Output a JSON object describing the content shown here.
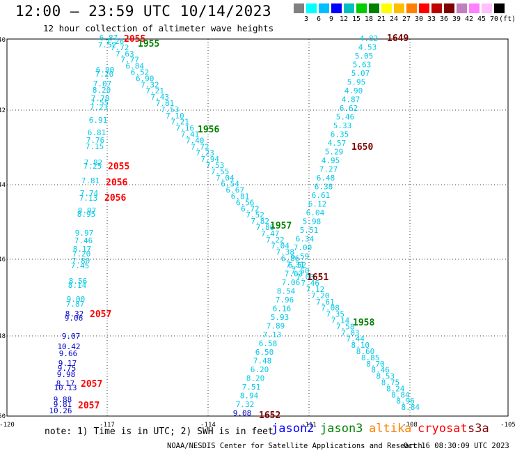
{
  "title": "12:00 – 23:59 UTC 10/14/2023",
  "subtitle": "12 hour collection of altimeter wave heights",
  "legend": {
    "unit": "(ft)",
    "colors": [
      "#808080",
      "#00ffff",
      "#00bfff",
      "#0000ff",
      "#00bfbf",
      "#00cc00",
      "#008000",
      "#ffff00",
      "#ffbf00",
      "#ff8000",
      "#ff0000",
      "#bf0000",
      "#800000",
      "#c080c0",
      "#ff80ff",
      "#ffc0ff",
      "#000000"
    ],
    "labels": [
      "3",
      "6",
      "9",
      "12",
      "15",
      "18",
      "21",
      "24",
      "27",
      "30",
      "33",
      "36",
      "39",
      "42",
      "45",
      "70"
    ]
  },
  "axes": {
    "lon_labels": [
      "-120",
      "-117",
      "-114",
      "-111",
      "-108",
      "-105"
    ],
    "lat_labels": [
      "40",
      "42",
      "44",
      "46",
      "48",
      "50"
    ]
  },
  "colors": {
    "cyan": "#00c8e6",
    "blue": "#0000cc",
    "green": "#008000",
    "red": "#ff0000",
    "darkred": "#800000",
    "grid": "#000000"
  },
  "tracks": [
    {
      "time": "2055",
      "color": "red"
    },
    {
      "time": "1955",
      "color": "green"
    },
    {
      "time": "1649",
      "color": "darkred"
    },
    {
      "time": "1650",
      "color": "darkred"
    },
    {
      "time": "1956",
      "color": "green"
    },
    {
      "time": "2055",
      "color": "red"
    },
    {
      "time": "2056",
      "color": "red"
    },
    {
      "time": "2056",
      "color": "red"
    },
    {
      "time": "1957",
      "color": "green"
    },
    {
      "time": "1651",
      "color": "darkred"
    },
    {
      "time": "2057",
      "color": "red"
    },
    {
      "time": "1958",
      "color": "green"
    },
    {
      "time": "2057",
      "color": "red"
    },
    {
      "time": "2057",
      "color": "red"
    },
    {
      "time": "1652",
      "color": "darkred"
    }
  ],
  "wave_heights": {
    "track_a": [
      "6.87",
      "7.52",
      "6.90",
      "7.20",
      "7.07",
      "8.20",
      "7.78",
      "7.55",
      "7.23",
      "6.91",
      "6.81",
      "7.76",
      "7.15",
      "7.82",
      "7.25",
      "7.81",
      "7.74",
      "7.13",
      "8.97",
      "8.95",
      "9.97",
      "7.46",
      "8.17",
      "7.20",
      "7.80",
      "7.45",
      "8.56",
      "8.14",
      "9.00",
      "7.87",
      "8.32",
      "9.06",
      "9.07",
      "10.42",
      "9.66",
      "9.17",
      "9.75",
      "9.98",
      "8.17",
      "10.13",
      "9.88",
      "9.81",
      "10.26"
    ],
    "track_b": [
      "4.82",
      "4.53",
      "5.05",
      "5.63",
      "5.07",
      "5.95",
      "4.90",
      "4.87",
      "6.62",
      "5.46",
      "5.33",
      "6.35",
      "4.57",
      "5.29",
      "4.95",
      "7.27",
      "6.48",
      "6.38",
      "6.61",
      "6.12",
      "6.04",
      "5.98",
      "5.51",
      "6.34",
      "7.00",
      "6.59",
      "6.52",
      "7.63",
      "7.06",
      "8.54",
      "7.96",
      "6.16",
      "5.93",
      "7.89",
      "7.13",
      "6.58",
      "6.50",
      "7.48",
      "6.20",
      "8.20",
      "7.51",
      "8.94",
      "7.32",
      "9.08"
    ],
    "track_c": [
      "7.26",
      "7.72",
      "7.63",
      "7.77",
      "6.84",
      "6.52",
      "6.90",
      "7.32",
      "7.21",
      "7.43",
      "7.81",
      "7.53",
      "7.10",
      "7.21",
      "7.16",
      "7.41",
      "7.40",
      "7.72",
      "7.23",
      "7.94",
      "7.53",
      "7.55",
      "7.04",
      "6.54",
      "6.67",
      "6.81",
      "6.56",
      "6.72",
      "7.52",
      "7.82",
      "7.80",
      "7.47",
      "7.22",
      "7.04",
      "7.38",
      "6.86",
      "7.31",
      "7.50",
      "7.03",
      "7.46",
      "7.12",
      "7.20",
      "7.61",
      "7.08",
      "7.35",
      "7.14",
      "7.58",
      "7.03",
      "7.44",
      "8.10",
      "8.60",
      "8.85",
      "8.70",
      "8.46",
      "8.53",
      "8.75",
      "8.24",
      "8.84",
      "8.96",
      "8.84"
    ]
  },
  "note": "note: 1) Time is in UTC; 2) SWH is in feet",
  "satellites": [
    {
      "name": "jason2",
      "color": "#0000ff"
    },
    {
      "name": "jason3",
      "color": "#008000"
    },
    {
      "name": "altika",
      "color": "#ff8000"
    },
    {
      "name": "cryosat",
      "color": "#ff0000"
    },
    {
      "name": "s3a",
      "color": "#800000"
    }
  ],
  "footer": {
    "org": "NOAA/NESDIS Center for Satellite Applications and Research",
    "timestamp": "Oct 16 08:30:09 UTC 2023"
  }
}
